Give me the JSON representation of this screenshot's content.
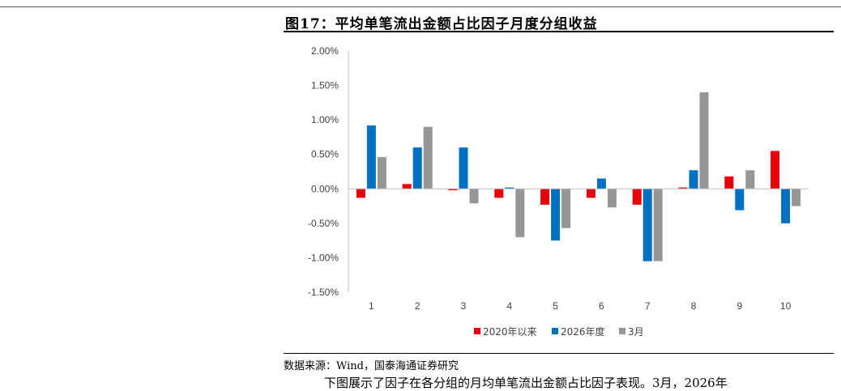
{
  "figure": {
    "title": "图17：平均单笔流出金额占比因子月度分组收益",
    "source": "数据来源：Wind，国泰海通证券研究",
    "body_fragment": "下图展示了因子在各分组的月均单笔流出金额占比因子表现。3月，2026年"
  },
  "colors": {
    "2020年以来": "#e8000b",
    "2026年度": "#0070c0",
    "3月": "#969696"
  },
  "chart_data": {
    "type": "bar",
    "title": "",
    "xlabel": "",
    "ylabel": "",
    "categories": [
      "1",
      "2",
      "3",
      "4",
      "5",
      "6",
      "7",
      "8",
      "9",
      "10"
    ],
    "ylim": [
      -0.015,
      0.02
    ],
    "ytick_labels": [
      "2.00%",
      "1.50%",
      "1.00%",
      "0.50%",
      "0.00%",
      "-0.50%",
      "-1.00%",
      "-1.50%"
    ],
    "ytick_values": [
      0.02,
      0.015,
      0.01,
      0.005,
      0,
      -0.005,
      -0.01,
      -0.015
    ],
    "legend_position": "bottom",
    "grid": false,
    "series": [
      {
        "name": "2020年以来",
        "values": [
          -0.0013,
          0.0007,
          -0.0002,
          -0.0013,
          -0.0023,
          -0.0013,
          -0.0023,
          0.0002,
          0.0018,
          0.0055
        ]
      },
      {
        "name": "2026年度",
        "values": [
          0.0092,
          0.006,
          0.006,
          0.0002,
          -0.0075,
          0.0015,
          -0.0105,
          0.0027,
          -0.0031,
          -0.005
        ]
      },
      {
        "name": "3月",
        "values": [
          0.0046,
          0.009,
          -0.0021,
          -0.007,
          -0.0057,
          -0.0027,
          -0.0105,
          0.014,
          0.0027,
          -0.0025
        ]
      }
    ]
  }
}
